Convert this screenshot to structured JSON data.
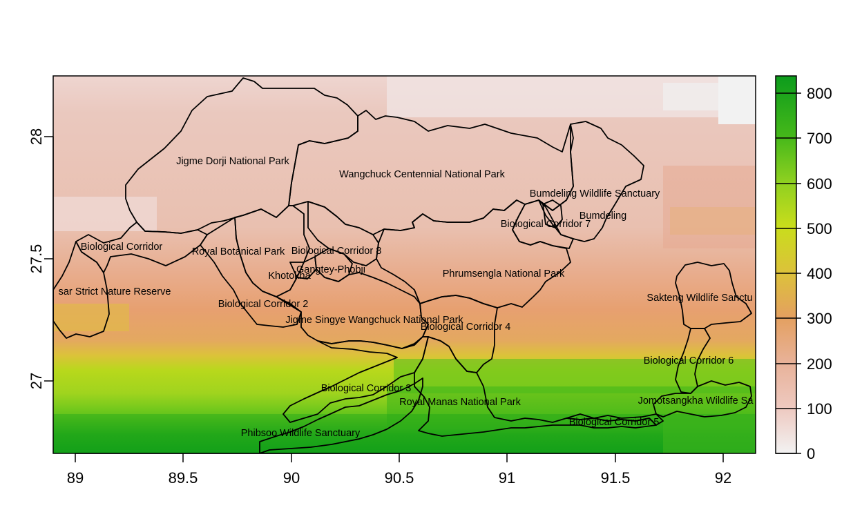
{
  "x_axis": {
    "ticks": [
      "89",
      "89.5",
      "90",
      "90.5",
      "91",
      "91.5",
      "92"
    ]
  },
  "y_axis": {
    "ticks": [
      "27",
      "27.5",
      "28"
    ]
  },
  "legend": {
    "ticks": [
      "0",
      "100",
      "200",
      "300",
      "400",
      "500",
      "600",
      "700",
      "800"
    ],
    "colors": [
      "#f2f2f2",
      "#eec9c0",
      "#e8b299",
      "#e4a060",
      "#dcc23a",
      "#c9dd1c",
      "#8ed020",
      "#45b81a",
      "#0c9c1c"
    ]
  },
  "protected_areas": [
    "Jigme Dorji National Park",
    "Wangchuck Centennial National Park",
    "Bumdeling Wildlife Sanctuary",
    "Bumdeling",
    "Biological Corridor 7",
    "Biological Corridor",
    "Royal Botanical Park",
    "Biological Corridor 8",
    "Gangtey-Phobji",
    "Khotokha",
    "Phrumsengla National Park",
    "sar Strict Nature Reserve",
    "Sakteng Wildlife Sanctu",
    "Biological Corridor 2",
    "Jigme Singye Wangchuck National Park",
    "Biological Corridor 4",
    "Biological Corridor 6",
    "Biological Corridor 3",
    "Royal Manas National Park",
    "Jomotsangkha Wildlife Sa",
    "Biological Corridor 5",
    "Phibsoo Wildlife Sanctuary"
  ],
  "chart_data": {
    "type": "heatmap",
    "title": "",
    "xlabel": "",
    "ylabel": "",
    "xlim": [
      88.9,
      92.15
    ],
    "ylim": [
      26.7,
      28.25
    ],
    "x_ticks": [
      89,
      89.5,
      90,
      90.5,
      91,
      91.5,
      92
    ],
    "y_ticks": [
      27,
      27.5,
      28
    ],
    "color_scale": {
      "min": 0,
      "max": 840,
      "ticks": [
        0,
        100,
        200,
        300,
        400,
        500,
        600,
        700,
        800
      ]
    },
    "value_bands_by_latitude": [
      {
        "lat_range": [
          28.05,
          28.25
        ],
        "value_approx": 120
      },
      {
        "lat_range": [
          27.6,
          28.05
        ],
        "value_approx": 110
      },
      {
        "lat_range": [
          27.3,
          27.6
        ],
        "value_approx": 170
      },
      {
        "lat_range": [
          27.15,
          27.3
        ],
        "value_approx": 260
      },
      {
        "lat_range": [
          27.0,
          27.15
        ],
        "value_approx": 450
      },
      {
        "lat_range": [
          26.85,
          27.0
        ],
        "value_approx": 620
      },
      {
        "lat_range": [
          26.7,
          26.85
        ],
        "value_approx": 780
      }
    ],
    "label_positions": [
      {
        "label": "Jigme Dorji National Park",
        "lon": 89.75,
        "lat": 27.89
      },
      {
        "label": "Wangchuck Centennial National Park",
        "lon": 90.6,
        "lat": 27.84
      },
      {
        "label": "Bumdeling Wildlife Sanctuary",
        "lon": 91.42,
        "lat": 27.76
      },
      {
        "label": "Bumdeling",
        "lon": 91.45,
        "lat": 27.67
      },
      {
        "label": "Biological Corridor 7",
        "lon": 91.18,
        "lat": 27.64
      },
      {
        "label": "Biological Corridor",
        "lon": 89.1,
        "lat": 27.55
      },
      {
        "label": "Royal Botanical Park",
        "lon": 89.72,
        "lat": 27.53
      },
      {
        "label": "Biological Corridor 8",
        "lon": 90.2,
        "lat": 27.53
      },
      {
        "label": "Gangtey-Phobji",
        "lon": 90.12,
        "lat": 27.46
      },
      {
        "label": "Khotokha",
        "lon": 89.98,
        "lat": 27.44
      },
      {
        "label": "Phrumsengla National Park",
        "lon": 90.98,
        "lat": 27.44
      },
      {
        "label": "sar Strict Nature Reserve",
        "lon": 89.16,
        "lat": 27.36
      },
      {
        "label": "Sakteng Wildlife Sanctu",
        "lon": 91.89,
        "lat": 27.33
      },
      {
        "label": "Biological Corridor 2",
        "lon": 89.87,
        "lat": 27.31
      },
      {
        "label": "Jigme Singye Wangchuck National Park",
        "lon": 90.38,
        "lat": 27.25
      },
      {
        "label": "Biological Corridor 4",
        "lon": 90.83,
        "lat": 27.22
      },
      {
        "label": "Biological Corridor 6",
        "lon": 91.83,
        "lat": 27.08
      },
      {
        "label": "Biological Corridor 3",
        "lon": 90.37,
        "lat": 26.96
      },
      {
        "label": "Royal Manas National Park",
        "lon": 90.75,
        "lat": 26.89
      },
      {
        "label": "Jomotsangkha Wildlife Sa",
        "lon": 91.92,
        "lat": 26.9
      },
      {
        "label": "Biological Corridor 5",
        "lon": 91.45,
        "lat": 26.81
      },
      {
        "label": "Phibsoo Wildlife Sanctuary",
        "lon": 89.99,
        "lat": 26.77
      }
    ]
  }
}
